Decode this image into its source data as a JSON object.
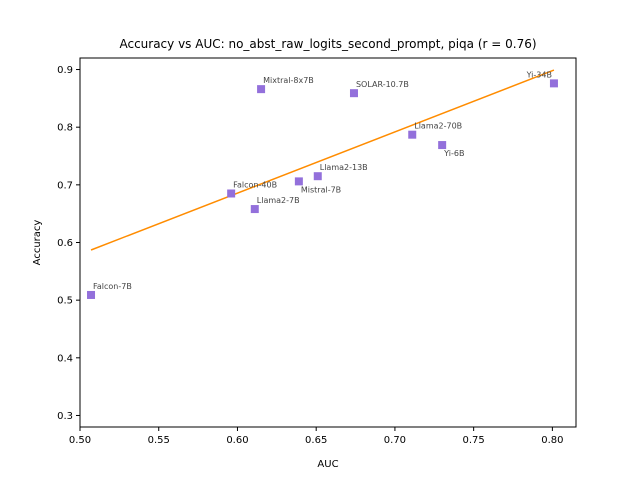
{
  "chart_data": {
    "type": "scatter",
    "title": "Accuracy vs AUC: no_abst_raw_logits_second_prompt, piqa (r = 0.76)",
    "xlabel": "AUC",
    "ylabel": "Accuracy",
    "xlim": [
      0.5,
      0.815
    ],
    "ylim": [
      0.28,
      0.92
    ],
    "xticks": [
      0.5,
      0.55,
      0.6,
      0.65,
      0.7,
      0.75,
      0.8
    ],
    "xtick_labels": [
      "0.50",
      "0.55",
      "0.60",
      "0.65",
      "0.70",
      "0.75",
      "0.80"
    ],
    "yticks": [
      0.3,
      0.4,
      0.5,
      0.6,
      0.7,
      0.8,
      0.9
    ],
    "ytick_labels": [
      "0.3",
      "0.4",
      "0.5",
      "0.6",
      "0.7",
      "0.8",
      "0.9"
    ],
    "grid": false,
    "marker_color": "#9370db",
    "fit_color": "#ff8c00",
    "fit_line": {
      "x": [
        0.507,
        0.801
      ],
      "y": [
        0.587,
        0.899
      ]
    },
    "points": [
      {
        "label": "Falcon-7B",
        "x": 0.507,
        "y": 0.509,
        "label_pos": "upper-right"
      },
      {
        "label": "Falcon-40B",
        "x": 0.596,
        "y": 0.685,
        "label_pos": "upper-right"
      },
      {
        "label": "Llama2-7B",
        "x": 0.611,
        "y": 0.658,
        "label_pos": "upper-right"
      },
      {
        "label": "Mixtral-8x7B",
        "x": 0.615,
        "y": 0.866,
        "label_pos": "upper-right"
      },
      {
        "label": "Mistral-7B",
        "x": 0.639,
        "y": 0.706,
        "label_pos": "lower-right"
      },
      {
        "label": "Llama2-13B",
        "x": 0.651,
        "y": 0.715,
        "label_pos": "upper-right"
      },
      {
        "label": "SOLAR-10.7B",
        "x": 0.674,
        "y": 0.859,
        "label_pos": "upper-right"
      },
      {
        "label": "Llama2-70B",
        "x": 0.711,
        "y": 0.787,
        "label_pos": "upper-right"
      },
      {
        "label": "Yi-6B",
        "x": 0.73,
        "y": 0.769,
        "label_pos": "lower-right"
      },
      {
        "label": "Yi-34B",
        "x": 0.801,
        "y": 0.876,
        "label_pos": "upper-left"
      }
    ]
  }
}
